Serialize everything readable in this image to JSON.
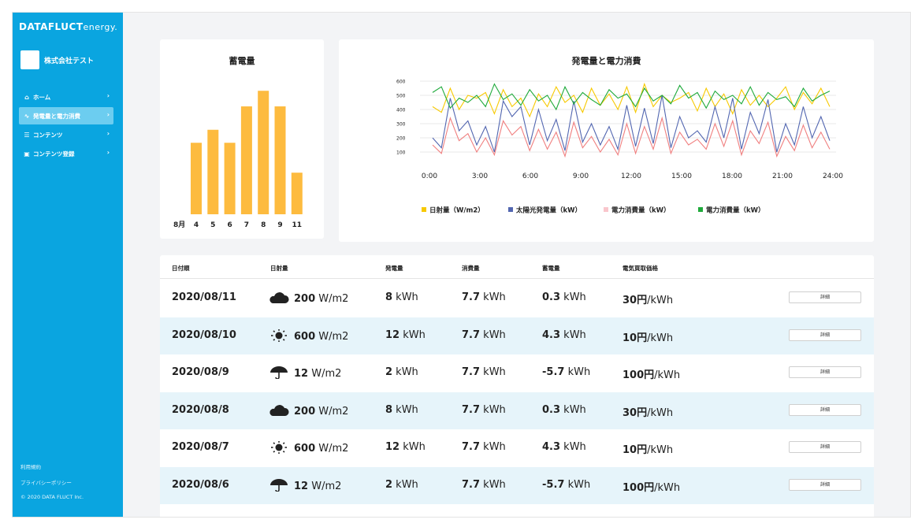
{
  "sidebar": {
    "logo": "DATAFLUCT",
    "logo_suffix": "energy.",
    "company": "株式会社テスト",
    "items": [
      {
        "label": "ホーム",
        "icon": "home-icon",
        "glyph": "⌂"
      },
      {
        "label": "発電量と電力消費",
        "icon": "chart-line-icon",
        "glyph": "∿"
      },
      {
        "label": "コンテンツ",
        "icon": "list-icon",
        "glyph": "☰"
      },
      {
        "label": "コンテンツ登録",
        "icon": "id-card-icon",
        "glyph": "▣"
      }
    ],
    "footer": [
      "利用規約",
      "プライバシーポリシー",
      "© 2020 DATA FLUCT Inc."
    ]
  },
  "storage_chart": {
    "title": "蓄電量",
    "chart_data": {
      "type": "bar",
      "categories": [
        "4",
        "5",
        "6",
        "7",
        "8",
        "9",
        "11"
      ],
      "values": [
        55,
        65,
        55,
        83,
        95,
        83,
        32
      ],
      "x_prefix_label": "8月",
      "color": "#fdbb3f"
    }
  },
  "main_chart": {
    "title": "発電量と電力消費",
    "chart_data": {
      "type": "line",
      "yticks": [
        100,
        200,
        300,
        400,
        500,
        600
      ],
      "ylim": [
        0,
        600
      ],
      "xticks": [
        "0:00",
        "3:00",
        "6:00",
        "9:00",
        "12:00",
        "15:00",
        "18:00",
        "21:00",
        "24:00"
      ],
      "xlim": [
        0,
        24
      ],
      "series": [
        {
          "name": "日射量（W/m2）",
          "color": "#f7c900",
          "values": [
            420,
            380,
            550,
            400,
            500,
            480,
            520,
            370,
            540,
            420,
            480,
            350,
            510,
            420,
            560,
            450,
            500,
            380,
            550,
            430,
            510,
            400,
            560,
            380,
            580,
            420,
            500,
            450,
            480,
            520,
            390,
            550,
            420,
            510,
            370,
            540,
            430,
            500,
            420,
            480,
            560,
            400,
            520,
            440,
            550,
            420
          ]
        },
        {
          "name": "太陽光発電量（kW）",
          "color": "#5266b0",
          "values": [
            200,
            130,
            480,
            250,
            320,
            150,
            280,
            100,
            460,
            350,
            420,
            150,
            400,
            180,
            330,
            110,
            460,
            170,
            300,
            150,
            280,
            120,
            430,
            140,
            410,
            160,
            500,
            130,
            350,
            200,
            250,
            170,
            420,
            200,
            480,
            120,
            380,
            230,
            470,
            100,
            300,
            150,
            420,
            200,
            350,
            180
          ]
        },
        {
          "name": "電力消費量（kW）",
          "color": "#f07f7f",
          "values": [
            150,
            90,
            340,
            180,
            230,
            100,
            200,
            80,
            320,
            220,
            280,
            110,
            260,
            120,
            240,
            70,
            310,
            130,
            210,
            100,
            190,
            80,
            300,
            90,
            280,
            120,
            340,
            90,
            240,
            150,
            190,
            120,
            300,
            140,
            320,
            80,
            250,
            160,
            310,
            70,
            210,
            110,
            290,
            130,
            240,
            120
          ]
        },
        {
          "name": "電力消費量（kW）",
          "color": "#1faa3b",
          "values": [
            520,
            560,
            410,
            480,
            450,
            500,
            420,
            580,
            470,
            510,
            430,
            540,
            460,
            500,
            400,
            560,
            440,
            520,
            470,
            430,
            540,
            480,
            510,
            420,
            550,
            460,
            500,
            440,
            570,
            480,
            520,
            410,
            530,
            470,
            500,
            440,
            560,
            430,
            520,
            470,
            490,
            420,
            550,
            460,
            500,
            530
          ]
        }
      ]
    }
  },
  "table": {
    "headers": [
      "日付順",
      "日射量",
      "発電量",
      "消費量",
      "蓄電量",
      "電気買取価格"
    ],
    "rows": [
      {
        "date": "2020/08/11",
        "weather_icon": "cloud-icon",
        "irr": "200",
        "irr_unit": " W/m2",
        "gen": "8",
        "cons": "7.7",
        "stor": "0.3",
        "price": "30円",
        "price_unit": "/kWh"
      },
      {
        "date": "2020/08/10",
        "weather_icon": "sun-icon",
        "irr": "600",
        "irr_unit": " W/m2",
        "gen": "12",
        "cons": "7.7",
        "stor": "4.3",
        "price": "10円",
        "price_unit": "/kWh"
      },
      {
        "date": "2020/08/9",
        "weather_icon": "umbrella-icon",
        "irr": "12",
        "irr_unit": " W/m2",
        "gen": "2",
        "cons": "7.7",
        "stor": "-5.7",
        "price": "100円",
        "price_unit": "/kWh"
      },
      {
        "date": "2020/08/8",
        "weather_icon": "cloud-icon",
        "irr": "200",
        "irr_unit": " W/m2",
        "gen": "8",
        "cons": "7.7",
        "stor": "0.3",
        "price": "30円",
        "price_unit": "/kWh"
      },
      {
        "date": "2020/08/7",
        "weather_icon": "sun-icon",
        "irr": "600",
        "irr_unit": " W/m2",
        "gen": "12",
        "cons": "7.7",
        "stor": "4.3",
        "price": "10円",
        "price_unit": "/kWh"
      },
      {
        "date": "2020/08/6",
        "weather_icon": "umbrella-icon",
        "irr": "12",
        "irr_unit": " W/m2",
        "gen": "2",
        "cons": "7.7",
        "stor": "-5.7",
        "price": "100円",
        "price_unit": "/kWh"
      }
    ],
    "unit_kwh": " kWh",
    "detail_label": "詳細"
  }
}
